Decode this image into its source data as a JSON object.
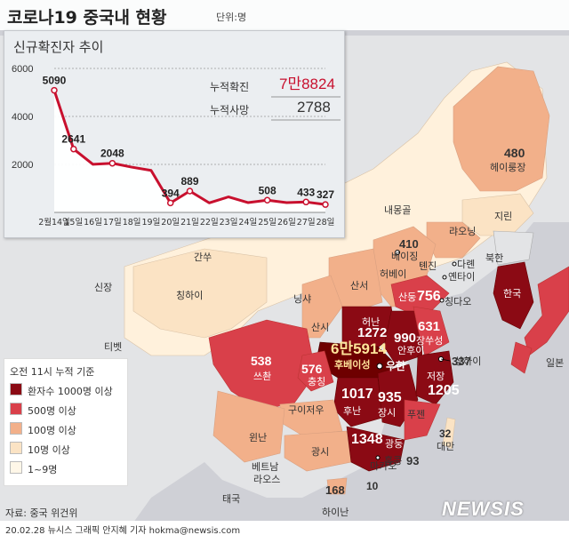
{
  "header": {
    "title": "코로나19 중국내 현황",
    "unit": "단위:명"
  },
  "chart": {
    "title": "신규확진자 추이",
    "cumulative_confirmed_label": "누적확진",
    "cumulative_confirmed_value": "7만8824",
    "cumulative_deaths_label": "누적사망",
    "cumulative_deaths_value": "2788",
    "colors": {
      "line": "#c8102e",
      "area": "#ffffff",
      "confirmed": "#c8102e"
    }
  },
  "chart_data": {
    "type": "area",
    "title": "신규확진자 추이",
    "x": [
      "2월14일",
      "15일",
      "16일",
      "17일",
      "18일",
      "19일",
      "20일",
      "21일",
      "22일",
      "23일",
      "24일",
      "25일",
      "26일",
      "27일",
      "28일"
    ],
    "values": [
      5090,
      2641,
      2004,
      2048,
      1886,
      1749,
      394,
      889,
      397,
      648,
      409,
      508,
      406,
      433,
      327
    ],
    "labeled_points": [
      {
        "x": "2월14일",
        "value": "5090"
      },
      {
        "x": "15일",
        "value": "2641"
      },
      {
        "x": "17일",
        "value": "2048"
      },
      {
        "x": "20일",
        "value": "394"
      },
      {
        "x": "21일",
        "value": "889"
      },
      {
        "x": "25일",
        "value": "508"
      },
      {
        "x": "27일",
        "value": "433"
      },
      {
        "x": "28일",
        "value": "327"
      }
    ],
    "yticks": [
      "6000",
      "4000",
      "2000"
    ],
    "ylim": [
      0,
      6000
    ],
    "grid": true
  },
  "legend": {
    "title": "오전 11시 누적 기준",
    "items": [
      {
        "label": "환자수 1000명 이상",
        "color": "#8b0a14"
      },
      {
        "label": "500명 이상",
        "color": "#d9404a"
      },
      {
        "label": "100명 이상",
        "color": "#f2b08a"
      },
      {
        "label": "10명 이상",
        "color": "#fbe3c4"
      },
      {
        "label": "1~9명",
        "color": "#fff7e8"
      }
    ]
  },
  "map": {
    "place_labels": [
      {
        "id": "heilongjiang",
        "text": "헤이룽장"
      },
      {
        "id": "jilin",
        "text": "지린"
      },
      {
        "id": "liaoning",
        "text": "랴오닝"
      },
      {
        "id": "neimenggu",
        "text": "내몽골"
      },
      {
        "id": "beijing",
        "text": "베이징"
      },
      {
        "id": "tianjin",
        "text": "톈진"
      },
      {
        "id": "hebei",
        "text": "허베이"
      },
      {
        "id": "dalian",
        "text": "다롄"
      },
      {
        "id": "yantai",
        "text": "옌타이"
      },
      {
        "id": "qingdao",
        "text": "칭다오"
      },
      {
        "id": "beihan",
        "text": "북한"
      },
      {
        "id": "korea",
        "text": "한국"
      },
      {
        "id": "japan",
        "text": "일본"
      },
      {
        "id": "gansu",
        "text": "간쑤"
      },
      {
        "id": "xinjiang",
        "text": "신장"
      },
      {
        "id": "qinghai",
        "text": "칭하이"
      },
      {
        "id": "ningxia",
        "text": "닝샤"
      },
      {
        "id": "shanxi",
        "text": "산서"
      },
      {
        "id": "shaanxi",
        "text": "산시"
      },
      {
        "id": "shandong",
        "text": "산둥"
      },
      {
        "id": "henan",
        "text": "허난"
      },
      {
        "id": "anhui",
        "text": "안후이"
      },
      {
        "id": "jiangsu",
        "text": "장쑤성"
      },
      {
        "id": "shanghai",
        "text": "상하이"
      },
      {
        "id": "hubei",
        "text": "후베이성"
      },
      {
        "id": "wuhan",
        "text": "우한"
      },
      {
        "id": "tibet",
        "text": "티벳"
      },
      {
        "id": "sichuan",
        "text": "쓰촨"
      },
      {
        "id": "chongqing",
        "text": "충칭"
      },
      {
        "id": "guizhou",
        "text": "구이저우"
      },
      {
        "id": "hunan",
        "text": "후난"
      },
      {
        "id": "jiangxi",
        "text": "장시"
      },
      {
        "id": "zhejiang",
        "text": "저장"
      },
      {
        "id": "fujian",
        "text": "푸젠"
      },
      {
        "id": "yunnan",
        "text": "윈난"
      },
      {
        "id": "guangxi",
        "text": "광시"
      },
      {
        "id": "guangdong",
        "text": "광둥"
      },
      {
        "id": "taiwan",
        "text": "대만"
      },
      {
        "id": "hongkong",
        "text": "홍콩"
      },
      {
        "id": "macau",
        "text": "마카오"
      },
      {
        "id": "hainan",
        "text": "하이난"
      },
      {
        "id": "vietnam",
        "text": "베트남"
      },
      {
        "id": "laos",
        "text": "라오스"
      },
      {
        "id": "thailand",
        "text": "태국"
      }
    ],
    "case_numbers": [
      {
        "id": "heilongjiang",
        "text": "480"
      },
      {
        "id": "beijing",
        "text": "410"
      },
      {
        "id": "shandong",
        "text": "756"
      },
      {
        "id": "henan",
        "text": "1272"
      },
      {
        "id": "anhui",
        "text": "990"
      },
      {
        "id": "jiangsu",
        "text": "631"
      },
      {
        "id": "hubei",
        "text": "6만5914"
      },
      {
        "id": "shanghai",
        "text": "337"
      },
      {
        "id": "sichuan",
        "text": "538"
      },
      {
        "id": "chongqing",
        "text": "576"
      },
      {
        "id": "hunan",
        "text": "1017"
      },
      {
        "id": "jiangxi",
        "text": "935"
      },
      {
        "id": "zhejiang",
        "text": "1205"
      },
      {
        "id": "guangdong",
        "text": "1348"
      },
      {
        "id": "taiwan",
        "text": "32"
      },
      {
        "id": "hongkong",
        "text": "93"
      },
      {
        "id": "macau",
        "text": "10"
      },
      {
        "id": "hainan",
        "text": "168"
      }
    ]
  },
  "source": "자료: 중국 위건위",
  "footer": "20.02.28  뉴시스 그래픽 안지혜 기자  hokma@newsis.com",
  "watermark": "NEWSIS"
}
